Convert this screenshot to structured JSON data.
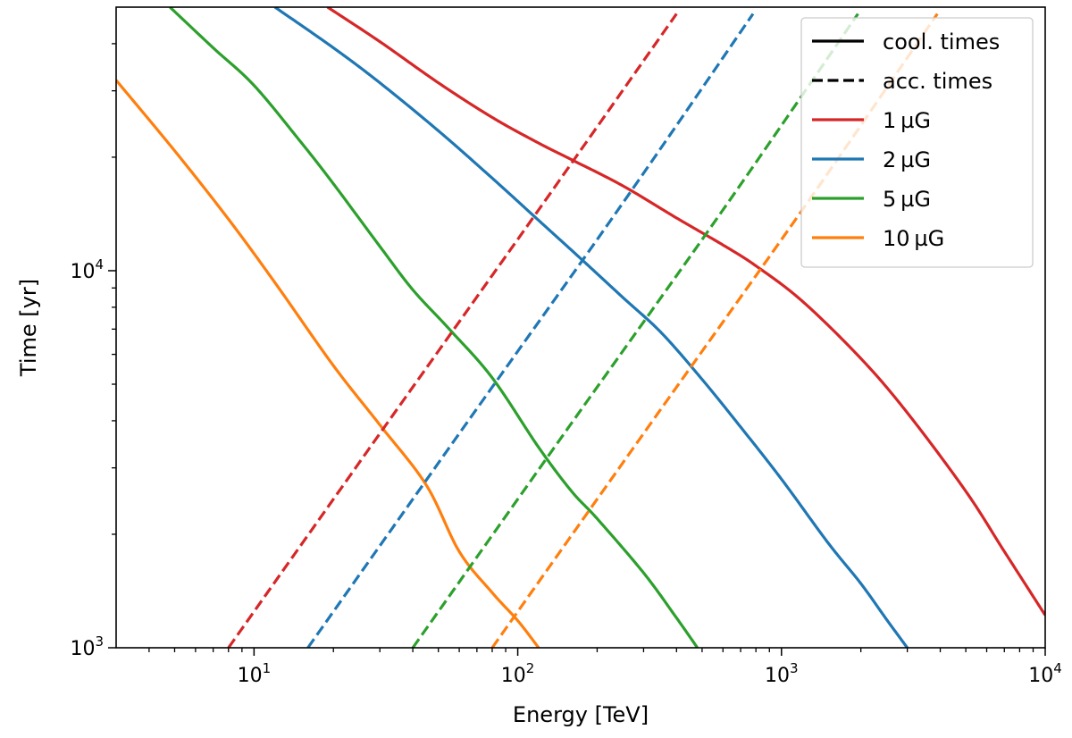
{
  "chart_data": {
    "type": "line",
    "title": "",
    "xlabel": "Energy [TeV]",
    "ylabel": "Time [yr]",
    "xscale": "log",
    "yscale": "log",
    "xlim": [
      3,
      10000
    ],
    "ylim": [
      1000,
      50000
    ],
    "grid": false,
    "legend_placement": "top-right",
    "x_ticks": [
      {
        "value": 10,
        "base": "10",
        "exp": "1"
      },
      {
        "value": 100,
        "base": "10",
        "exp": "2"
      },
      {
        "value": 1000,
        "base": "10",
        "exp": "3"
      },
      {
        "value": 10000,
        "base": "10",
        "exp": "4"
      }
    ],
    "y_ticks": [
      {
        "value": 1000,
        "base": "10",
        "exp": "3"
      },
      {
        "value": 10000,
        "base": "10",
        "exp": "4"
      }
    ],
    "legend": [
      {
        "label": "cool. times",
        "color": "#000000",
        "dashed": false
      },
      {
        "label": "acc. times",
        "color": "#000000",
        "dashed": true
      },
      {
        "label": "1 µG",
        "color": "#d62728",
        "dashed": false
      },
      {
        "label": "2 µG",
        "color": "#1f77b4",
        "dashed": false
      },
      {
        "label": "5 µG",
        "color": "#2ca02c",
        "dashed": false
      },
      {
        "label": "10 µG",
        "color": "#ff7f0e",
        "dashed": false
      }
    ],
    "series": [
      {
        "field": "1 µG",
        "kind": "cool",
        "color": "#d62728",
        "x": [
          19,
          30,
          50,
          80,
          120,
          160,
          250,
          400,
          600,
          800,
          1200,
          2000,
          3000,
          5000,
          7000,
          10000
        ],
        "y": [
          50000,
          40500,
          31500,
          25500,
          21800,
          19700,
          16800,
          13800,
          11700,
          10300,
          8300,
          5850,
          4200,
          2600,
          1800,
          1220
        ]
      },
      {
        "field": "2 µG",
        "kind": "cool",
        "color": "#1f77b4",
        "x": [
          12,
          20,
          30,
          50,
          80,
          120,
          170,
          250,
          350,
          500,
          700,
          1000,
          1500,
          2000,
          2500,
          3000
        ],
        "y": [
          50000,
          39000,
          31500,
          23500,
          17600,
          13600,
          10900,
          8500,
          6850,
          5150,
          3850,
          2800,
          1900,
          1480,
          1190,
          1000
        ]
      },
      {
        "field": "5 µG",
        "kind": "cool",
        "color": "#2ca02c",
        "x": [
          4.8,
          7,
          10,
          15,
          20,
          30,
          40,
          55,
          80,
          120,
          160,
          200,
          300,
          400,
          480
        ],
        "y": [
          50000,
          39000,
          31000,
          22000,
          17000,
          11600,
          8900,
          7000,
          5200,
          3400,
          2600,
          2200,
          1580,
          1200,
          1000
        ]
      },
      {
        "field": "10 µG",
        "kind": "cool",
        "color": "#ff7f0e",
        "x": [
          3,
          5,
          8,
          12,
          20,
          30,
          45,
          60,
          80,
          100,
          120
        ],
        "y": [
          32000,
          20800,
          13700,
          9300,
          5600,
          3900,
          2700,
          1800,
          1400,
          1180,
          1000
        ]
      },
      {
        "field": "1 µG",
        "kind": "acc",
        "color": "#d62728",
        "x": [
          8,
          30,
          120,
          400
        ],
        "y": [
          1000,
          3700,
          14500,
          48000
        ]
      },
      {
        "field": "2 µG",
        "kind": "acc",
        "color": "#1f77b4",
        "x": [
          16,
          60,
          240,
          780
        ],
        "y": [
          1000,
          3700,
          14500,
          48000
        ]
      },
      {
        "field": "5 µG",
        "kind": "acc",
        "color": "#2ca02c",
        "x": [
          40,
          150,
          600,
          1950
        ],
        "y": [
          1000,
          3700,
          14500,
          48000
        ]
      },
      {
        "field": "10 µG",
        "kind": "acc",
        "color": "#ff7f0e",
        "x": [
          80,
          300,
          1200,
          3900
        ],
        "y": [
          1000,
          3700,
          14500,
          48000
        ]
      }
    ]
  }
}
